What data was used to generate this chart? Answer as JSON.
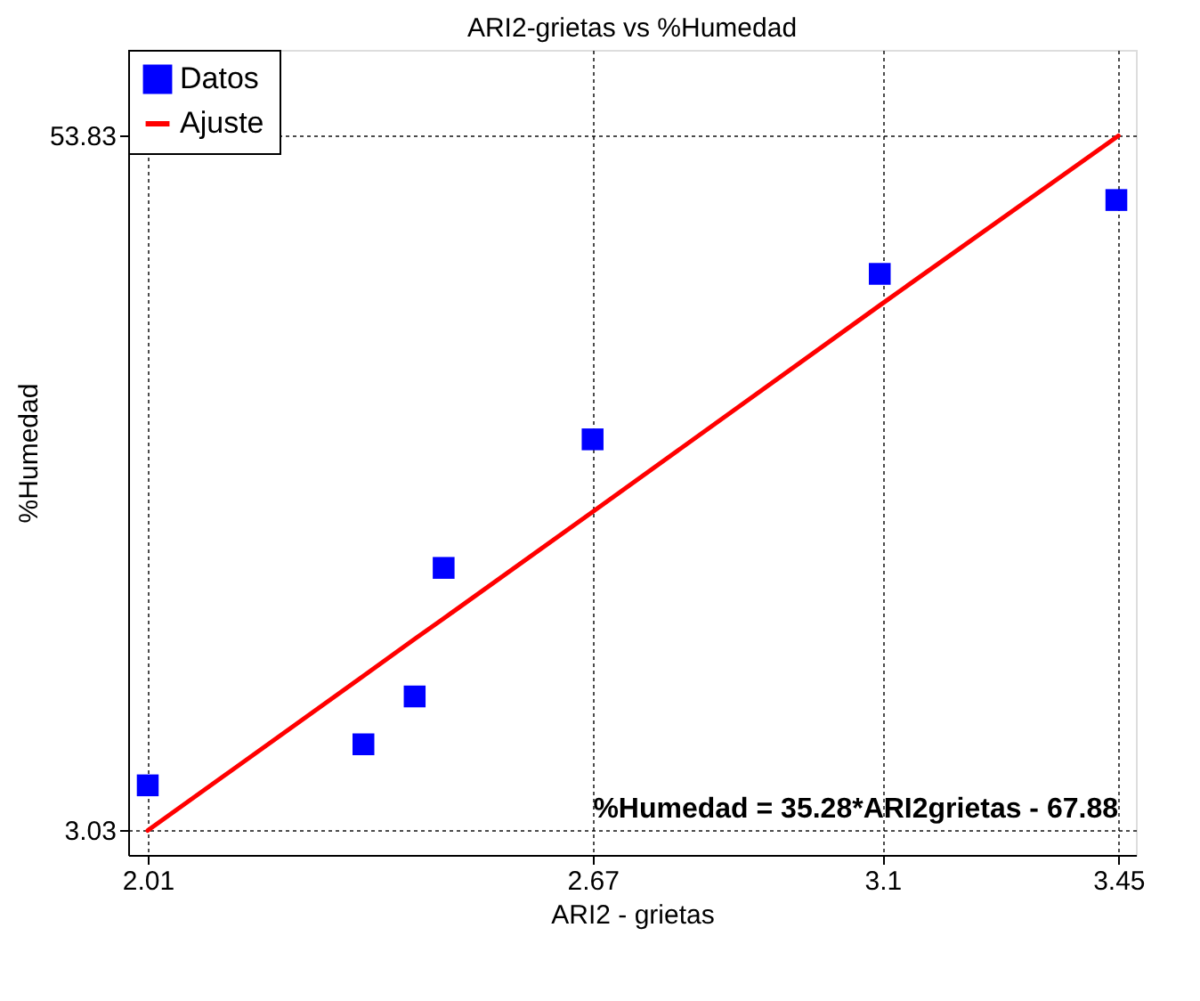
{
  "chart_data": {
    "type": "scatter",
    "title": "ARI2-grietas vs %Humedad",
    "xlabel": "ARI2 - grietas",
    "ylabel": "%Humedad",
    "x": [
      2.01,
      2.33,
      2.406,
      2.449,
      2.67,
      3.096,
      3.447
    ],
    "series": [
      {
        "name": "Datos",
        "color": "#0000ff",
        "marker": "square",
        "values": [
          6.3,
          9.3,
          12.8,
          22.2,
          31.6,
          43.7,
          49.1
        ]
      },
      {
        "name": "Ajuste",
        "type": "line",
        "color": "#ff0000",
        "line_style": "solid",
        "x": [
          2.01,
          2.33,
          2.406,
          2.449,
          2.67,
          3.096,
          3.45
        ],
        "values": [
          3.0,
          14.3,
          17.0,
          18.5,
          26.3,
          41.4,
          53.8
        ]
      }
    ],
    "xlim": [
      1.981,
      3.476
    ],
    "ylim": [
      1.21,
      60.08
    ],
    "xticks": [
      2.01,
      2.67,
      3.1,
      3.45
    ],
    "yticks": [
      3.03,
      53.83
    ],
    "grid": true,
    "legend": "top left",
    "annotations": [
      "%Humedad = 35.28*ARI2grietas - 67.88"
    ]
  }
}
